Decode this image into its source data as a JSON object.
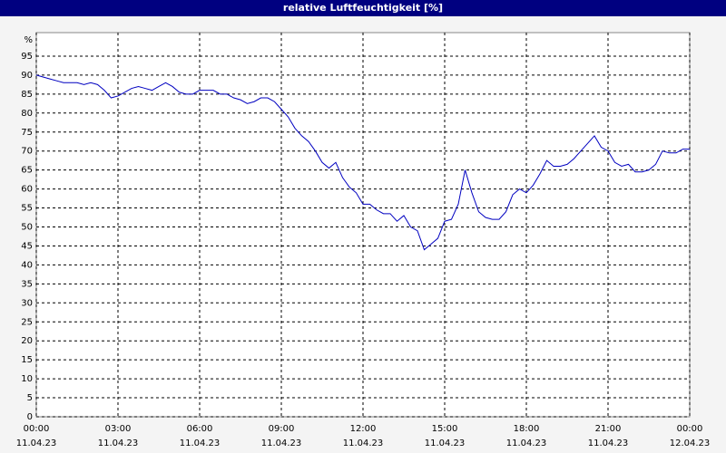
{
  "chart_data": {
    "type": "line",
    "title": "relative Luftfeuchtigkeit [%]",
    "ylabel": "%",
    "x": [
      0,
      0.25,
      0.5,
      0.75,
      1,
      1.25,
      1.5,
      1.75,
      2,
      2.25,
      2.5,
      2.75,
      3,
      3.25,
      3.5,
      3.75,
      4,
      4.25,
      4.5,
      4.75,
      5,
      5.25,
      5.5,
      5.75,
      6,
      6.25,
      6.5,
      6.75,
      7,
      7.25,
      7.5,
      7.75,
      8,
      8.25,
      8.5,
      8.75,
      9,
      9.25,
      9.5,
      9.75,
      10,
      10.25,
      10.5,
      10.75,
      11,
      11.25,
      11.5,
      11.75,
      12,
      12.25,
      12.5,
      12.75,
      13,
      13.25,
      13.5,
      13.75,
      14,
      14.25,
      14.5,
      14.75,
      15,
      15.25,
      15.5,
      15.75,
      16,
      16.25,
      16.5,
      16.75,
      17,
      17.25,
      17.5,
      17.75,
      18,
      18.25,
      18.5,
      18.75,
      19,
      19.25,
      19.5,
      19.75,
      20,
      20.25,
      20.5,
      20.75,
      21,
      21.25,
      21.5,
      21.75,
      22,
      22.25,
      22.5,
      22.75,
      23,
      23.25,
      23.5,
      23.75,
      24
    ],
    "series": [
      {
        "name": "relative Luftfeuchtigkeit",
        "color": "#0000c0",
        "values": [
          90,
          89.5,
          89,
          88.5,
          88,
          88,
          88,
          87.5,
          88,
          87.5,
          86,
          84,
          84.5,
          85.5,
          86.5,
          87,
          86.5,
          86,
          87,
          88,
          87,
          85.5,
          85,
          85,
          86,
          86,
          86,
          85,
          85,
          84,
          83.5,
          82.5,
          83,
          84,
          84,
          83,
          81,
          79,
          76,
          74,
          72.5,
          70,
          67,
          65.5,
          67,
          63,
          60.5,
          59,
          56,
          56,
          54.5,
          53.5,
          53.5,
          51.5,
          53,
          50,
          49,
          44,
          45.5,
          47,
          51.5,
          52,
          56,
          65,
          59,
          54,
          52.5,
          52,
          52,
          54,
          58.5,
          60,
          59,
          61,
          64,
          67.5,
          66,
          66,
          66.5,
          68,
          70,
          72,
          74,
          71,
          70,
          67,
          66,
          66.5,
          64.5,
          64.5,
          65,
          66.5,
          70,
          69.5,
          69.5,
          70.5,
          70.5
        ]
      }
    ],
    "xlim": [
      0,
      24
    ],
    "xticks": [
      {
        "value": 0,
        "label": "00:00"
      },
      {
        "value": 3,
        "label": "03:00"
      },
      {
        "value": 6,
        "label": "06:00"
      },
      {
        "value": 9,
        "label": "09:00"
      },
      {
        "value": 12,
        "label": "12:00"
      },
      {
        "value": 15,
        "label": "15:00"
      },
      {
        "value": 18,
        "label": "18:00"
      },
      {
        "value": 21,
        "label": "21:00"
      },
      {
        "value": 24,
        "label": "00:00"
      }
    ],
    "xtick_dates": [
      "11.04.23",
      "11.04.23",
      "11.04.23",
      "11.04.23",
      "11.04.23",
      "11.04.23",
      "11.04.23",
      "11.04.23",
      "12.04.23"
    ],
    "ylim": [
      0,
      100
    ],
    "yticks": [
      0,
      5,
      10,
      15,
      20,
      25,
      30,
      35,
      40,
      45,
      50,
      55,
      60,
      65,
      70,
      75,
      80,
      85,
      90,
      95
    ],
    "grid": true
  }
}
